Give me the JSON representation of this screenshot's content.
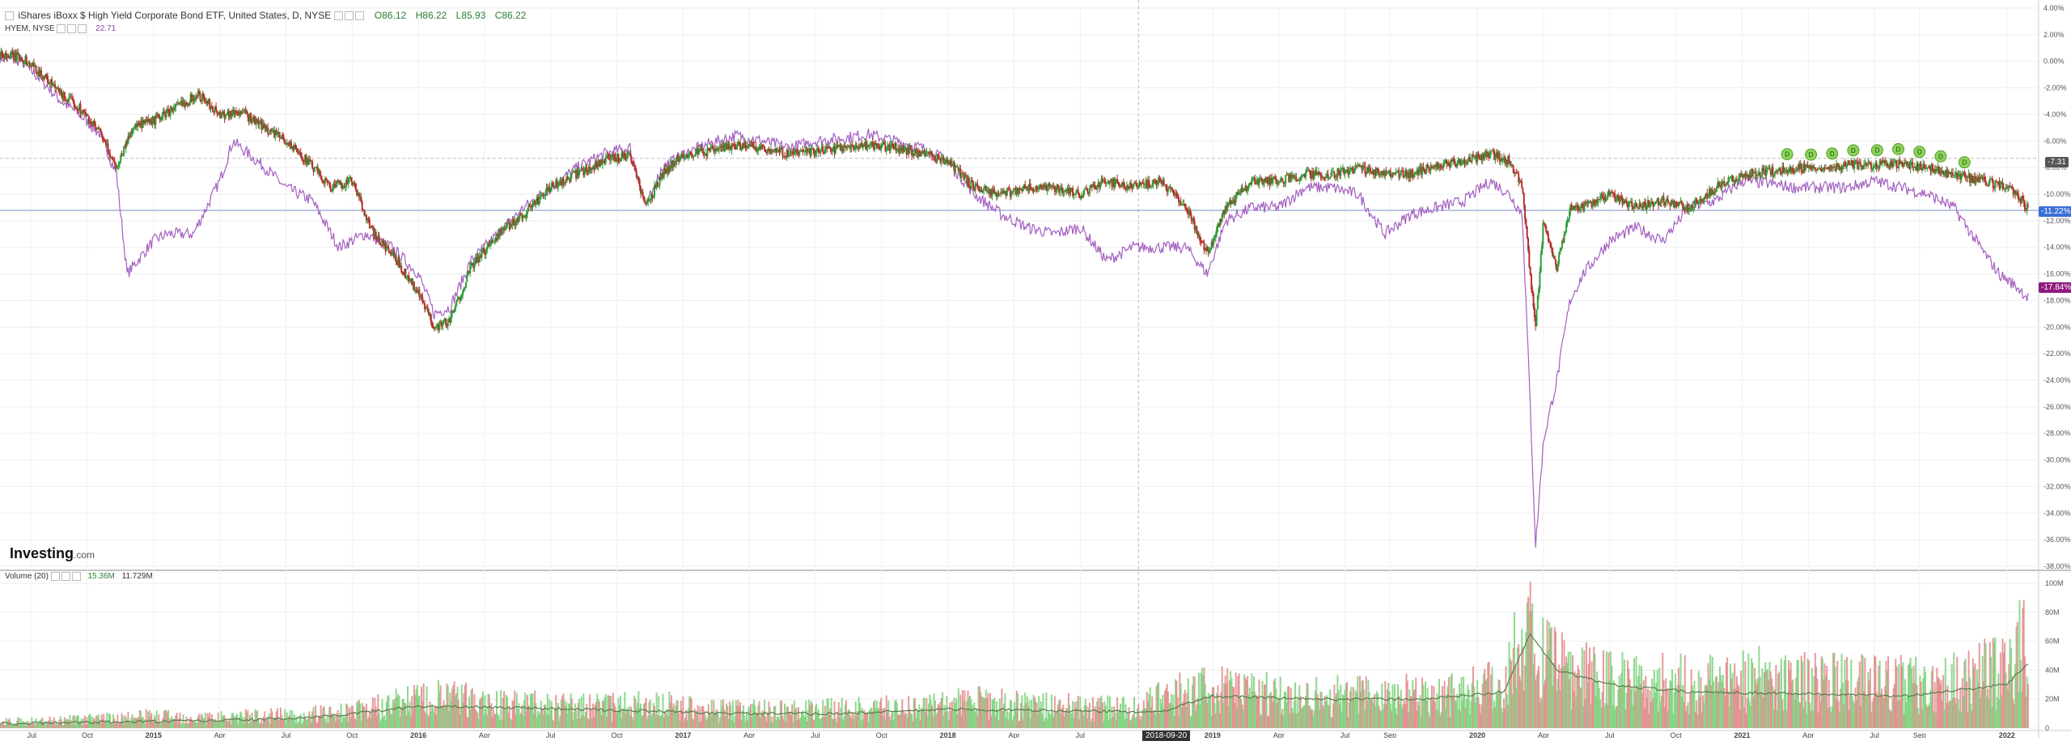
{
  "header": {
    "title": "iShares iBoxx $ High Yield Corporate Bond ETF, United States, D, NYSE",
    "o": "O86.12",
    "h": "H86.22",
    "l": "L85.93",
    "c": "C86.22",
    "compare_symbol": "HYEM, NYSE",
    "compare_value": "22.71"
  },
  "volume_legend": {
    "label": "Volume (20)",
    "v1": "15.36M",
    "v2": "11.729M"
  },
  "logo": {
    "main": "Investing",
    "suffix": ".com"
  },
  "crosshair_date": "2018-09-20",
  "tags": {
    "hyg_current": "-11.22%",
    "hyem_current": "-17.84%",
    "dashed_level": "-7.31"
  },
  "colors": {
    "up": "#2e9c3a",
    "down": "#b5302b",
    "compare": "#a35fc0",
    "vol_up": "#7bd17b",
    "vol_down": "#e08a8a",
    "vol_ma": "#5a7a4a",
    "dividend": "#8bd35a"
  },
  "chart_data": [
    {
      "type": "line",
      "title": "iShares iBoxx $ High Yield Corporate Bond ETF, United States, D, NYSE",
      "xlabel": "",
      "ylabel": "",
      "ylim": [
        -38,
        4
      ],
      "y_ticks": [
        "4.00%",
        "2.00%",
        "0.00%",
        "-2.00%",
        "-4.00%",
        "-6.00%",
        "-8.00%",
        "-10.00%",
        "-12.00%",
        "-14.00%",
        "-16.00%",
        "-18.00%",
        "-20.00%",
        "-22.00%",
        "-24.00%",
        "-26.00%",
        "-28.00%",
        "-30.00%",
        "-32.00%",
        "-34.00%",
        "-36.00%",
        "-38.00%"
      ],
      "x_ticks": [
        {
          "date": "2014.54",
          "label": "Jul"
        },
        {
          "date": "2014.75",
          "label": "Oct"
        },
        {
          "date": "2015.00",
          "label": "2015"
        },
        {
          "date": "2015.25",
          "label": "Apr"
        },
        {
          "date": "2015.50",
          "label": "Jul"
        },
        {
          "date": "2015.75",
          "label": "Oct"
        },
        {
          "date": "2016.00",
          "label": "2016"
        },
        {
          "date": "2016.25",
          "label": "Apr"
        },
        {
          "date": "2016.50",
          "label": "Jul"
        },
        {
          "date": "2016.75",
          "label": "Oct"
        },
        {
          "date": "2017.00",
          "label": "2017"
        },
        {
          "date": "2017.25",
          "label": "Apr"
        },
        {
          "date": "2017.50",
          "label": "Jul"
        },
        {
          "date": "2017.75",
          "label": "Oct"
        },
        {
          "date": "2018.00",
          "label": "2018"
        },
        {
          "date": "2018.25",
          "label": "Apr"
        },
        {
          "date": "2018.50",
          "label": "Jul"
        },
        {
          "date": "2019.00",
          "label": "2019"
        },
        {
          "date": "2019.25",
          "label": "Apr"
        },
        {
          "date": "2019.50",
          "label": "Jul"
        },
        {
          "date": "2019.67",
          "label": "Sep"
        },
        {
          "date": "2020.00",
          "label": "2020"
        },
        {
          "date": "2020.25",
          "label": "Apr"
        },
        {
          "date": "2020.50",
          "label": "Jul"
        },
        {
          "date": "2020.75",
          "label": "Oct"
        },
        {
          "date": "2021.00",
          "label": "2021"
        },
        {
          "date": "2021.25",
          "label": "Apr"
        },
        {
          "date": "2021.50",
          "label": "Jul"
        },
        {
          "date": "2021.67",
          "label": "Sep"
        },
        {
          "date": "2022.00",
          "label": "2022"
        }
      ],
      "series": [
        {
          "name": "",
          "x": [
            2014.42,
            2014.5,
            2014.58,
            2014.65,
            2014.72,
            2014.8,
            2014.86,
            2014.92,
            2015.0,
            2015.08,
            2015.17,
            2015.25,
            2015.33,
            2015.42,
            2015.5,
            2015.58,
            2015.67,
            2015.75,
            2015.83,
            2015.92,
            2016.0,
            2016.06,
            2016.12,
            2016.2,
            2016.3,
            2016.4,
            2016.5,
            2016.6,
            2016.7,
            2016.8,
            2016.86,
            2016.92,
            2017.0,
            2017.1,
            2017.2,
            2017.3,
            2017.4,
            2017.5,
            2017.6,
            2017.7,
            2017.8,
            2017.9,
            2018.0,
            2018.1,
            2018.2,
            2018.3,
            2018.4,
            2018.5,
            2018.6,
            2018.7,
            2018.8,
            2018.9,
            2018.98,
            2019.05,
            2019.15,
            2019.25,
            2019.35,
            2019.45,
            2019.55,
            2019.65,
            2019.75,
            2019.85,
            2019.95,
            2020.05,
            2020.12,
            2020.17,
            2020.2,
            2020.22,
            2020.25,
            2020.3,
            2020.35,
            2020.4,
            2020.5,
            2020.6,
            2020.7,
            2020.8,
            2020.9,
            2021.0,
            2021.1,
            2021.2,
            2021.3,
            2021.4,
            2021.5,
            2021.6,
            2021.7,
            2021.8,
            2021.9,
            2021.97,
            2022.04,
            2022.08
          ],
          "values": [
            0.5,
            0.3,
            -1.0,
            -2.5,
            -3.5,
            -5.5,
            -8.0,
            -5.0,
            -4.5,
            -3.5,
            -2.5,
            -4.0,
            -3.8,
            -5.0,
            -6.0,
            -7.5,
            -9.5,
            -9.0,
            -13.0,
            -15.0,
            -17.5,
            -20.0,
            -19.5,
            -15.5,
            -13.0,
            -11.5,
            -9.5,
            -8.5,
            -7.5,
            -7.0,
            -11.0,
            -8.5,
            -7.0,
            -6.8,
            -6.3,
            -6.5,
            -7.0,
            -6.8,
            -6.5,
            -6.3,
            -6.5,
            -7.0,
            -7.5,
            -9.5,
            -10.0,
            -9.5,
            -9.5,
            -10.0,
            -9.0,
            -9.5,
            -9.0,
            -11.0,
            -14.5,
            -11.0,
            -9.0,
            -9.0,
            -8.5,
            -8.5,
            -8.0,
            -8.5,
            -8.5,
            -7.8,
            -7.5,
            -7.0,
            -7.5,
            -9.5,
            -16.0,
            -20.0,
            -12.0,
            -15.5,
            -11.0,
            -11.0,
            -10.0,
            -11.0,
            -10.5,
            -11.0,
            -9.5,
            -8.5,
            -8.3,
            -8.0,
            -8.2,
            -7.8,
            -7.8,
            -7.7,
            -8.0,
            -8.5,
            -9.0,
            -9.3,
            -10.0,
            -11.2
          ]
        },
        {
          "name": "HYEM, NYSE",
          "x": [
            2014.42,
            2014.5,
            2014.58,
            2014.65,
            2014.72,
            2014.8,
            2014.86,
            2014.9,
            2015.0,
            2015.05,
            2015.15,
            2015.25,
            2015.3,
            2015.42,
            2015.5,
            2015.6,
            2015.7,
            2015.8,
            2015.9,
            2016.0,
            2016.06,
            2016.12,
            2016.2,
            2016.3,
            2016.4,
            2016.5,
            2016.6,
            2016.7,
            2016.8,
            2016.86,
            2016.92,
            2017.0,
            2017.1,
            2017.2,
            2017.3,
            2017.4,
            2017.5,
            2017.6,
            2017.7,
            2017.8,
            2017.9,
            2018.0,
            2018.1,
            2018.2,
            2018.3,
            2018.4,
            2018.5,
            2018.6,
            2018.7,
            2018.8,
            2018.9,
            2018.98,
            2019.05,
            2019.15,
            2019.25,
            2019.35,
            2019.45,
            2019.55,
            2019.65,
            2019.75,
            2019.85,
            2019.95,
            2020.05,
            2020.12,
            2020.17,
            2020.2,
            2020.22,
            2020.25,
            2020.3,
            2020.35,
            2020.4,
            2020.5,
            2020.6,
            2020.7,
            2020.8,
            2020.9,
            2021.0,
            2021.1,
            2021.2,
            2021.3,
            2021.4,
            2021.5,
            2021.6,
            2021.7,
            2021.8,
            2021.9,
            2021.97,
            2022.04,
            2022.08
          ],
          "values": [
            0.3,
            0.0,
            -1.5,
            -3.0,
            -4.0,
            -5.5,
            -8.5,
            -16.0,
            -13.5,
            -13.0,
            -13.0,
            -9.0,
            -6.0,
            -8.0,
            -9.5,
            -10.5,
            -14.0,
            -13.0,
            -14.0,
            -16.0,
            -19.0,
            -18.5,
            -15.0,
            -13.0,
            -11.0,
            -9.5,
            -8.0,
            -7.0,
            -6.5,
            -11.0,
            -8.0,
            -7.0,
            -6.2,
            -5.6,
            -6.0,
            -6.5,
            -6.0,
            -5.8,
            -5.5,
            -6.0,
            -6.5,
            -7.5,
            -10.0,
            -11.5,
            -12.5,
            -13.0,
            -12.5,
            -15.0,
            -14.0,
            -14.0,
            -14.0,
            -16.0,
            -12.0,
            -11.0,
            -11.0,
            -9.5,
            -9.5,
            -10.0,
            -13.0,
            -11.5,
            -11.0,
            -10.5,
            -9.0,
            -10.0,
            -11.5,
            -26.0,
            -36.5,
            -28.5,
            -24.0,
            -18.0,
            -16.0,
            -13.5,
            -12.5,
            -13.5,
            -11.0,
            -10.5,
            -9.0,
            -9.2,
            -9.5,
            -9.5,
            -9.5,
            -9.0,
            -9.5,
            -10.0,
            -11.0,
            -14.0,
            -16.0,
            -17.0,
            -17.8
          ]
        }
      ],
      "dividend_markers": {
        "label": "D",
        "x": [
          2021.17,
          2021.26,
          2021.34,
          2021.42,
          2021.51,
          2021.59,
          2021.67,
          2021.75,
          2021.84
        ]
      }
    },
    {
      "type": "bar",
      "title": "Volume (20)",
      "xlabel": "",
      "ylabel": "",
      "ylim": [
        0,
        105
      ],
      "y_ticks": [
        "100M",
        "80M",
        "60M",
        "40M",
        "20M",
        "0"
      ],
      "series": [
        {
          "name": "Volume",
          "x": [
            2014.42,
            2014.6,
            2014.8,
            2015.0,
            2015.2,
            2015.4,
            2015.6,
            2015.8,
            2015.95,
            2016.1,
            2016.3,
            2016.5,
            2016.7,
            2016.9,
            2017.1,
            2017.3,
            2017.5,
            2017.7,
            2017.9,
            2018.1,
            2018.3,
            2018.5,
            2018.7,
            2018.9,
            2019.1,
            2019.3,
            2019.5,
            2019.7,
            2019.9,
            2020.1,
            2020.18,
            2020.25,
            2020.4,
            2020.6,
            2020.8,
            2021.0,
            2021.2,
            2021.4,
            2021.6,
            2021.8,
            2022.0,
            2022.08
          ],
          "values": [
            4,
            5,
            6,
            8,
            7,
            8,
            9,
            12,
            18,
            20,
            16,
            15,
            14,
            16,
            12,
            12,
            12,
            13,
            14,
            18,
            15,
            14,
            13,
            25,
            26,
            22,
            22,
            22,
            24,
            30,
            70,
            45,
            35,
            32,
            30,
            34,
            33,
            30,
            30,
            32,
            40,
            60
          ]
        },
        {
          "name": "Volume MA",
          "x": [
            2014.42,
            2014.8,
            2015.2,
            2015.6,
            2016.0,
            2016.4,
            2016.8,
            2017.2,
            2017.6,
            2018.0,
            2018.4,
            2018.8,
            2019.0,
            2019.4,
            2019.8,
            2020.1,
            2020.2,
            2020.3,
            2020.5,
            2020.8,
            2021.2,
            2021.6,
            2022.0,
            2022.08
          ],
          "values": [
            3,
            4,
            5,
            7,
            15,
            14,
            12,
            10,
            10,
            13,
            12,
            11,
            22,
            20,
            20,
            25,
            65,
            40,
            30,
            25,
            24,
            22,
            30,
            45
          ]
        }
      ]
    }
  ]
}
